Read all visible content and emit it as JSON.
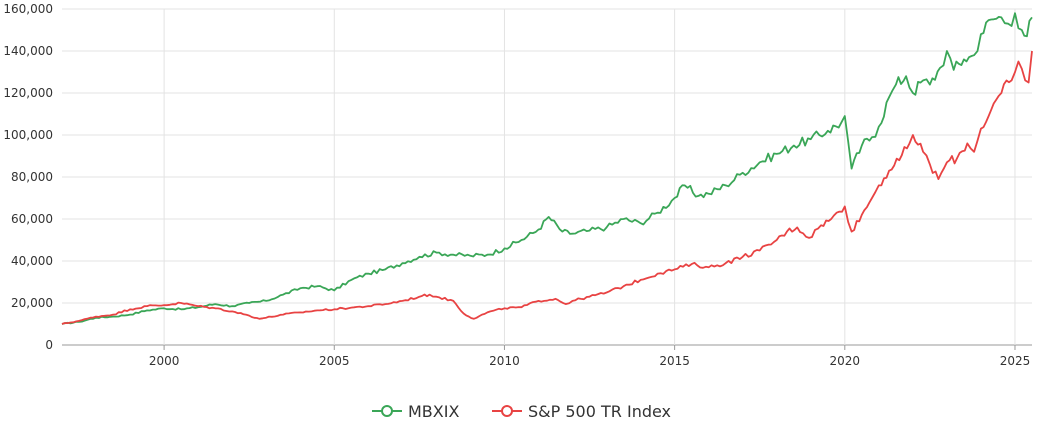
{
  "chart_data": {
    "type": "line",
    "title": "",
    "xlabel": "",
    "ylabel": "",
    "xlim": [
      1997.0,
      2025.5
    ],
    "ylim": [
      0,
      160000
    ],
    "x_ticks": [
      2000,
      2005,
      2010,
      2015,
      2020,
      2025
    ],
    "x_tick_labels": [
      "2000",
      "2005",
      "2010",
      "2015",
      "2020",
      "2025"
    ],
    "y_ticks": [
      0,
      20000,
      40000,
      60000,
      80000,
      100000,
      120000,
      140000,
      160000
    ],
    "y_tick_labels": [
      "0",
      "20,000",
      "40,000",
      "60,000",
      "80,000",
      "100,000",
      "120,000",
      "140,000",
      "160,000"
    ],
    "grid": true,
    "legend_position": "bottom-center",
    "series": [
      {
        "name": "MBXIX",
        "color": "#3aa657",
        "marker": "circle-open",
        "points": [
          [
            1997.0,
            10000
          ],
          [
            1997.5,
            11000
          ],
          [
            1998.0,
            13000
          ],
          [
            1998.5,
            13500
          ],
          [
            1999.0,
            14500
          ],
          [
            1999.5,
            16500
          ],
          [
            2000.0,
            17500
          ],
          [
            2000.5,
            17000
          ],
          [
            2001.0,
            18000
          ],
          [
            2001.5,
            19500
          ],
          [
            2002.0,
            18500
          ],
          [
            2002.5,
            20000
          ],
          [
            2003.0,
            21000
          ],
          [
            2003.5,
            24000
          ],
          [
            2004.0,
            27000
          ],
          [
            2004.5,
            28000
          ],
          [
            2005.0,
            26000
          ],
          [
            2005.5,
            31000
          ],
          [
            2006.0,
            34000
          ],
          [
            2006.5,
            36000
          ],
          [
            2007.0,
            39000
          ],
          [
            2007.5,
            42000
          ],
          [
            2008.0,
            44000
          ],
          [
            2008.5,
            43000
          ],
          [
            2009.0,
            42500
          ],
          [
            2009.5,
            43000
          ],
          [
            2010.0,
            46000
          ],
          [
            2010.5,
            50000
          ],
          [
            2011.0,
            55000
          ],
          [
            2011.3,
            61000
          ],
          [
            2011.7,
            54000
          ],
          [
            2012.0,
            53000
          ],
          [
            2012.5,
            54500
          ],
          [
            2013.0,
            56000
          ],
          [
            2013.5,
            60000
          ],
          [
            2014.0,
            58000
          ],
          [
            2014.5,
            63000
          ],
          [
            2015.0,
            70000
          ],
          [
            2015.3,
            76000
          ],
          [
            2015.7,
            71000
          ],
          [
            2016.0,
            72000
          ],
          [
            2016.5,
            76000
          ],
          [
            2017.0,
            82000
          ],
          [
            2017.5,
            87000
          ],
          [
            2018.0,
            91000
          ],
          [
            2018.5,
            95000
          ],
          [
            2019.0,
            98000
          ],
          [
            2019.5,
            102000
          ],
          [
            2019.9,
            106000
          ],
          [
            2020.0,
            109000
          ],
          [
            2020.2,
            84000
          ],
          [
            2020.5,
            95000
          ],
          [
            2020.8,
            99000
          ],
          [
            2021.0,
            104000
          ],
          [
            2021.3,
            118000
          ],
          [
            2021.5,
            124000
          ],
          [
            2021.8,
            128000
          ],
          [
            2022.0,
            120000
          ],
          [
            2022.3,
            126000
          ],
          [
            2022.5,
            124000
          ],
          [
            2022.8,
            132000
          ],
          [
            2023.0,
            140000
          ],
          [
            2023.2,
            131000
          ],
          [
            2023.5,
            136000
          ],
          [
            2023.8,
            138000
          ],
          [
            2024.0,
            148000
          ],
          [
            2024.3,
            155000
          ],
          [
            2024.6,
            156000
          ],
          [
            2024.8,
            153000
          ],
          [
            2025.0,
            158000
          ],
          [
            2025.2,
            150000
          ],
          [
            2025.35,
            147000
          ],
          [
            2025.5,
            156000
          ]
        ]
      },
      {
        "name": "S&P 500 TR Index",
        "color": "#e84343",
        "marker": "circle-open",
        "points": [
          [
            1997.0,
            10000
          ],
          [
            1997.5,
            11500
          ],
          [
            1998.0,
            13500
          ],
          [
            1998.5,
            14500
          ],
          [
            1999.0,
            17000
          ],
          [
            1999.5,
            18500
          ],
          [
            2000.0,
            19000
          ],
          [
            2000.5,
            20000
          ],
          [
            2001.0,
            18500
          ],
          [
            2001.5,
            17500
          ],
          [
            2002.0,
            16000
          ],
          [
            2002.5,
            14000
          ],
          [
            2002.8,
            12500
          ],
          [
            2003.0,
            13000
          ],
          [
            2003.5,
            14500
          ],
          [
            2004.0,
            15500
          ],
          [
            2004.5,
            16500
          ],
          [
            2005.0,
            17000
          ],
          [
            2005.5,
            17800
          ],
          [
            2006.0,
            18500
          ],
          [
            2006.5,
            19500
          ],
          [
            2007.0,
            21000
          ],
          [
            2007.5,
            23000
          ],
          [
            2007.8,
            24000
          ],
          [
            2008.0,
            23000
          ],
          [
            2008.5,
            21000
          ],
          [
            2008.8,
            15000
          ],
          [
            2009.1,
            12500
          ],
          [
            2009.5,
            15500
          ],
          [
            2010.0,
            17500
          ],
          [
            2010.5,
            18000
          ],
          [
            2011.0,
            21000
          ],
          [
            2011.5,
            22000
          ],
          [
            2011.8,
            19500
          ],
          [
            2012.0,
            21000
          ],
          [
            2012.5,
            23000
          ],
          [
            2013.0,
            25000
          ],
          [
            2013.5,
            28000
          ],
          [
            2014.0,
            31000
          ],
          [
            2014.5,
            34000
          ],
          [
            2015.0,
            36000
          ],
          [
            2015.5,
            38500
          ],
          [
            2016.0,
            37000
          ],
          [
            2016.5,
            39000
          ],
          [
            2017.0,
            42000
          ],
          [
            2017.5,
            45000
          ],
          [
            2018.0,
            50000
          ],
          [
            2018.3,
            54000
          ],
          [
            2018.6,
            56000
          ],
          [
            2018.95,
            51000
          ],
          [
            2019.3,
            57000
          ],
          [
            2019.6,
            60000
          ],
          [
            2020.0,
            66000
          ],
          [
            2020.2,
            54000
          ],
          [
            2020.5,
            62000
          ],
          [
            2020.8,
            70000
          ],
          [
            2021.0,
            76000
          ],
          [
            2021.3,
            83000
          ],
          [
            2021.6,
            88000
          ],
          [
            2021.9,
            96000
          ],
          [
            2022.0,
            100000
          ],
          [
            2022.3,
            92000
          ],
          [
            2022.5,
            86000
          ],
          [
            2022.75,
            79000
          ],
          [
            2023.0,
            87000
          ],
          [
            2023.3,
            89000
          ],
          [
            2023.6,
            96000
          ],
          [
            2023.8,
            92000
          ],
          [
            2024.0,
            103000
          ],
          [
            2024.3,
            112000
          ],
          [
            2024.6,
            120000
          ],
          [
            2024.9,
            126000
          ],
          [
            2025.1,
            135000
          ],
          [
            2025.3,
            126000
          ],
          [
            2025.4,
            125000
          ],
          [
            2025.5,
            140000
          ]
        ]
      }
    ]
  }
}
